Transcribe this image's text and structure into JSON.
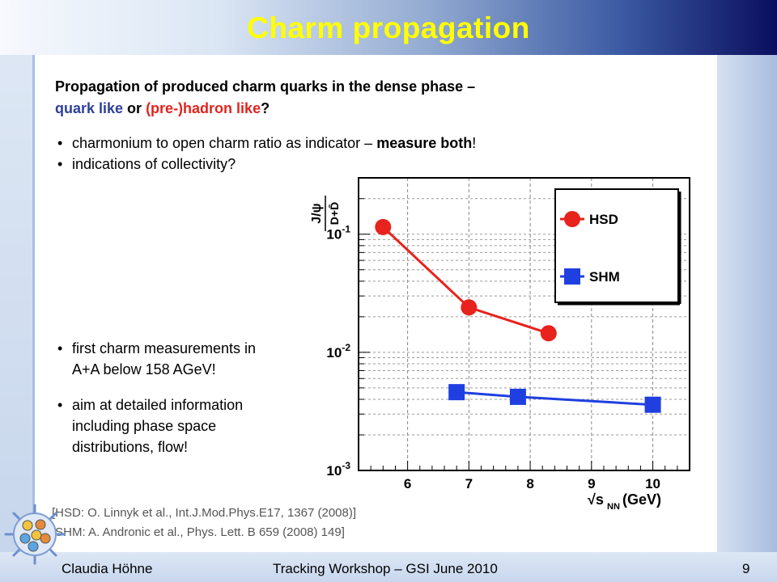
{
  "slide": {
    "title": "Charm propagation",
    "intro_line1": "Propagation of produced charm quarks in the dense phase –",
    "intro_quark": "quark like",
    "intro_or": " or ",
    "intro_hadron": "(pre-)hadron like",
    "intro_q": "?",
    "bullet1_pre": "charmonium to open charm ratio as indicator – ",
    "bullet1_bold": "measure both",
    "bullet1_post": "!",
    "bullet2": "indications of collectivity?",
    "bullet3_line1": "first charm measurements in",
    "bullet3_line2": "A+A below 158 AGeV!",
    "bullet4_line1": "aim at detailed information",
    "bullet4_line2": "including phase space",
    "bullet4_line3": "distributions, flow!",
    "ref1": "[HSD: O. Linnyk et al., Int.J.Mod.Phys.E17, 1367 (2008)]",
    "ref2": "[SHM: A. Andronic et al., Phys. Lett. B 659 (2008) 149]",
    "bullet_glyph": "•"
  },
  "footer": {
    "author": "Claudia Höhne",
    "event": "Tracking Workshop – GSI June 2010",
    "page": "9"
  },
  "colors": {
    "title": "#ffff00",
    "hsd": "#e8221c",
    "shm": "#1f3fe0",
    "quark_like": "#2e3f9a",
    "hadron_like": "#e0251f"
  },
  "chart_data": {
    "type": "line",
    "y_scale": "log",
    "xlim": [
      5.2,
      10.6
    ],
    "ylim": [
      0.001,
      0.3
    ],
    "x_ticks": [
      6,
      7,
      8,
      9,
      10
    ],
    "y_ticks": [
      {
        "value": 0.1,
        "base": "10",
        "exp": "-1"
      },
      {
        "value": 0.01,
        "base": "10",
        "exp": "-2"
      },
      {
        "value": 0.001,
        "base": "10",
        "exp": "-3"
      }
    ],
    "xlabel_main": "√s",
    "xlabel_sub": "NN",
    "xlabel_unit": "(GeV)",
    "ylabel_num": "J/ψ",
    "ylabel_den": "D+D̄",
    "grid": true,
    "legend_position": "top-right",
    "series": [
      {
        "name": "HSD",
        "marker": "circle",
        "color": "#e8221c",
        "x": [
          5.6,
          7.0,
          8.3
        ],
        "y": [
          0.115,
          0.024,
          0.0145
        ]
      },
      {
        "name": "SHM",
        "marker": "square",
        "color": "#1f3fe0",
        "x": [
          6.8,
          7.8,
          10.0
        ],
        "y": [
          0.0046,
          0.0042,
          0.0036
        ]
      }
    ]
  }
}
